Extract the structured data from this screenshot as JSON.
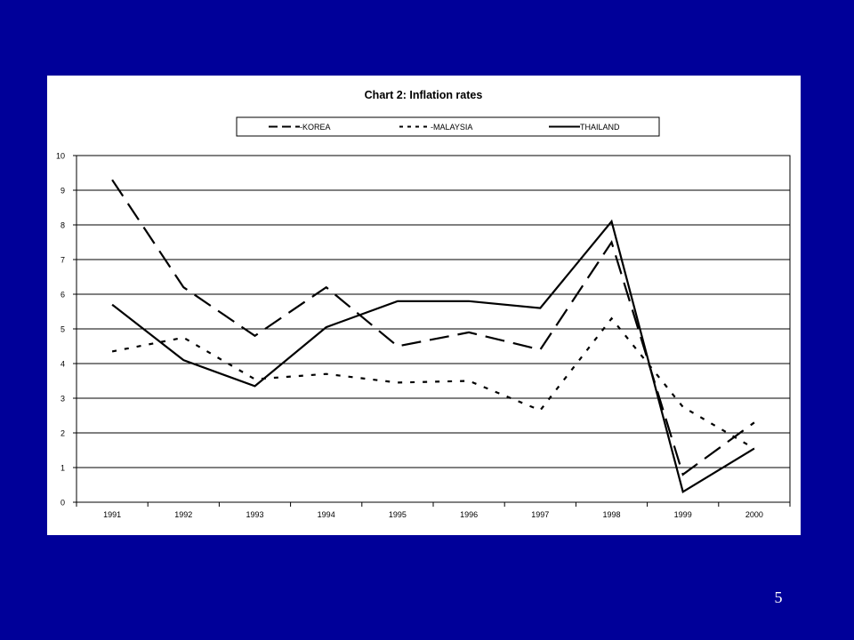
{
  "slide": {
    "number": "5",
    "background": "#000099"
  },
  "chart_data": {
    "type": "line",
    "title": "Chart 2:  Inflation rates",
    "categories": [
      "1991",
      "1992",
      "1993",
      "1994",
      "1995",
      "1996",
      "1997",
      "1998",
      "1999",
      "2000"
    ],
    "series": [
      {
        "name": "KOREA",
        "legend_label": "-KOREA",
        "style": "long-dash",
        "values": [
          9.3,
          6.2,
          4.8,
          6.2,
          4.5,
          4.9,
          4.4,
          7.5,
          0.8,
          2.3
        ]
      },
      {
        "name": "MALAYSIA",
        "legend_label": "-MALAYSIA",
        "style": "short-dash",
        "values": [
          4.35,
          4.75,
          3.55,
          3.7,
          3.45,
          3.5,
          2.65,
          5.3,
          2.75,
          1.55
        ]
      },
      {
        "name": "THAILAND",
        "legend_label": "THAILAND",
        "style": "solid",
        "values": [
          5.7,
          4.1,
          3.35,
          5.05,
          5.8,
          5.8,
          5.6,
          8.1,
          0.3,
          1.55
        ]
      }
    ],
    "ylim": [
      0,
      10
    ],
    "yticks": [
      "0",
      "1",
      "2",
      "3",
      "4",
      "5",
      "6",
      "7",
      "8",
      "9",
      "10"
    ],
    "xlabel": "",
    "ylabel": "",
    "grid": "horizontal",
    "legend_position": "top",
    "colors": {
      "lines": "#000000",
      "plot_background": "#ffffff"
    }
  }
}
